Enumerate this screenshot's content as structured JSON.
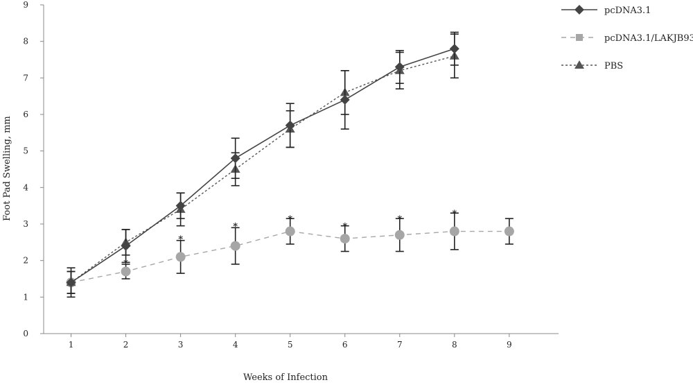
{
  "chart_data": {
    "type": "line",
    "title": "",
    "xlabel": "Weeks of Infection",
    "ylabel": "Foot Pad Swelling, mm",
    "xlim": [
      0.5,
      9.9
    ],
    "ylim": [
      0,
      9
    ],
    "x_ticks": [
      1,
      2,
      3,
      4,
      5,
      6,
      7,
      8,
      9
    ],
    "y_ticks": [
      0,
      1,
      2,
      3,
      4,
      5,
      6,
      7,
      8,
      9
    ],
    "grid": false,
    "legend_position": "top-right",
    "series": [
      {
        "name": "pcDNA3.1",
        "style": "solid",
        "marker": "diamond",
        "color": "#444444",
        "x": [
          1,
          2,
          3,
          4,
          5,
          6,
          7,
          8
        ],
        "y": [
          1.4,
          2.4,
          3.5,
          4.8,
          5.7,
          6.4,
          7.3,
          7.8
        ],
        "err": [
          0.4,
          0.45,
          0.35,
          0.55,
          0.6,
          0.8,
          0.45,
          0.45
        ]
      },
      {
        "name": "pcDNA3.1/LAKJB93",
        "style": "dashed",
        "marker": "circle",
        "color": "#a6a6a6",
        "x": [
          1,
          2,
          3,
          4,
          5,
          6,
          7,
          8,
          9
        ],
        "y": [
          1.4,
          1.7,
          2.1,
          2.4,
          2.8,
          2.6,
          2.7,
          2.8,
          2.8
        ],
        "err": [
          0.3,
          0.2,
          0.45,
          0.5,
          0.35,
          0.35,
          0.45,
          0.5,
          0.35
        ]
      },
      {
        "name": "PBS",
        "style": "dotted",
        "marker": "triangle",
        "color": "#555555",
        "x": [
          1,
          2,
          3,
          4,
          5,
          6,
          7,
          8
        ],
        "y": [
          1.4,
          2.5,
          3.4,
          4.5,
          5.6,
          6.6,
          7.2,
          7.6
        ],
        "err": [
          0.3,
          0.35,
          0.45,
          0.45,
          0.5,
          0.6,
          0.5,
          0.6
        ]
      }
    ],
    "annotations": [
      {
        "text": "*",
        "x": 2,
        "y": 1.95
      },
      {
        "text": "*",
        "x": 3,
        "y": 2.6
      },
      {
        "text": "*",
        "x": 4,
        "y": 2.95
      },
      {
        "text": "*",
        "x": 5,
        "y": 3.15
      },
      {
        "text": "*",
        "x": 6,
        "y": 2.95
      },
      {
        "text": "*",
        "x": 7,
        "y": 3.15
      },
      {
        "text": "*",
        "x": 8,
        "y": 3.3
      }
    ]
  }
}
